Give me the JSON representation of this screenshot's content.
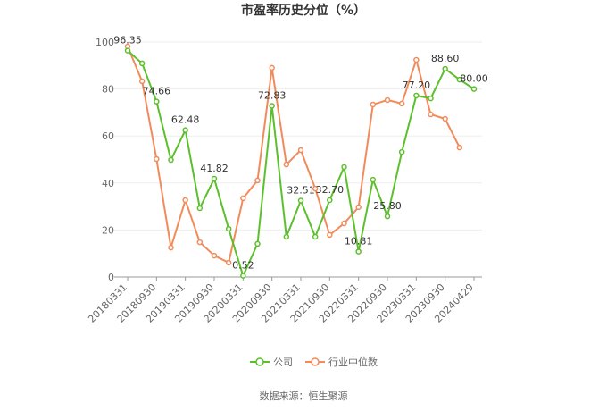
{
  "chart_data": {
    "type": "line",
    "title": "市盈率历史分位（%）",
    "source": "数据来源：恒生聚源",
    "categories": [
      "20180331",
      null,
      "20180930",
      null,
      "20190331",
      null,
      "20190930",
      null,
      "20200331",
      null,
      "20200930",
      null,
      "20210331",
      null,
      "20210930",
      null,
      "20220331",
      null,
      "20220930",
      null,
      "20230331",
      null,
      "20230930",
      null,
      "20240429"
    ],
    "series": [
      {
        "name": "公司",
        "color": "#5cbf2c",
        "values": [
          96.35,
          90.9,
          74.66,
          49.8,
          62.48,
          29.3,
          41.82,
          20.5,
          0.52,
          14.1,
          72.83,
          17.1,
          32.51,
          17.1,
          32.7,
          46.8,
          10.81,
          41.4,
          25.8,
          53.2,
          77.2,
          76.0,
          88.6,
          84.0,
          80.0
        ],
        "value_labels": [
          "96.35",
          null,
          "74.66",
          null,
          "62.48",
          null,
          "41.82",
          null,
          "0.52",
          null,
          "72.83",
          null,
          "32.51",
          null,
          "32.70",
          null,
          "10.81",
          null,
          "25.80",
          null,
          "77.20",
          null,
          "88.60",
          null,
          "80.00"
        ]
      },
      {
        "name": "行业中位数",
        "color": "#f28b5b",
        "values": [
          98.1,
          83.3,
          50.2,
          12.5,
          32.7,
          14.8,
          9.1,
          6.1,
          33.5,
          41.1,
          89.0,
          47.9,
          54.0,
          37.6,
          17.9,
          22.8,
          29.7,
          73.4,
          75.3,
          73.8,
          92.4,
          69.2,
          67.3,
          55.1,
          null
        ]
      }
    ],
    "ylim": [
      0,
      100
    ],
    "yticks": [
      0,
      20,
      40,
      60,
      80,
      100
    ],
    "grid": true
  }
}
